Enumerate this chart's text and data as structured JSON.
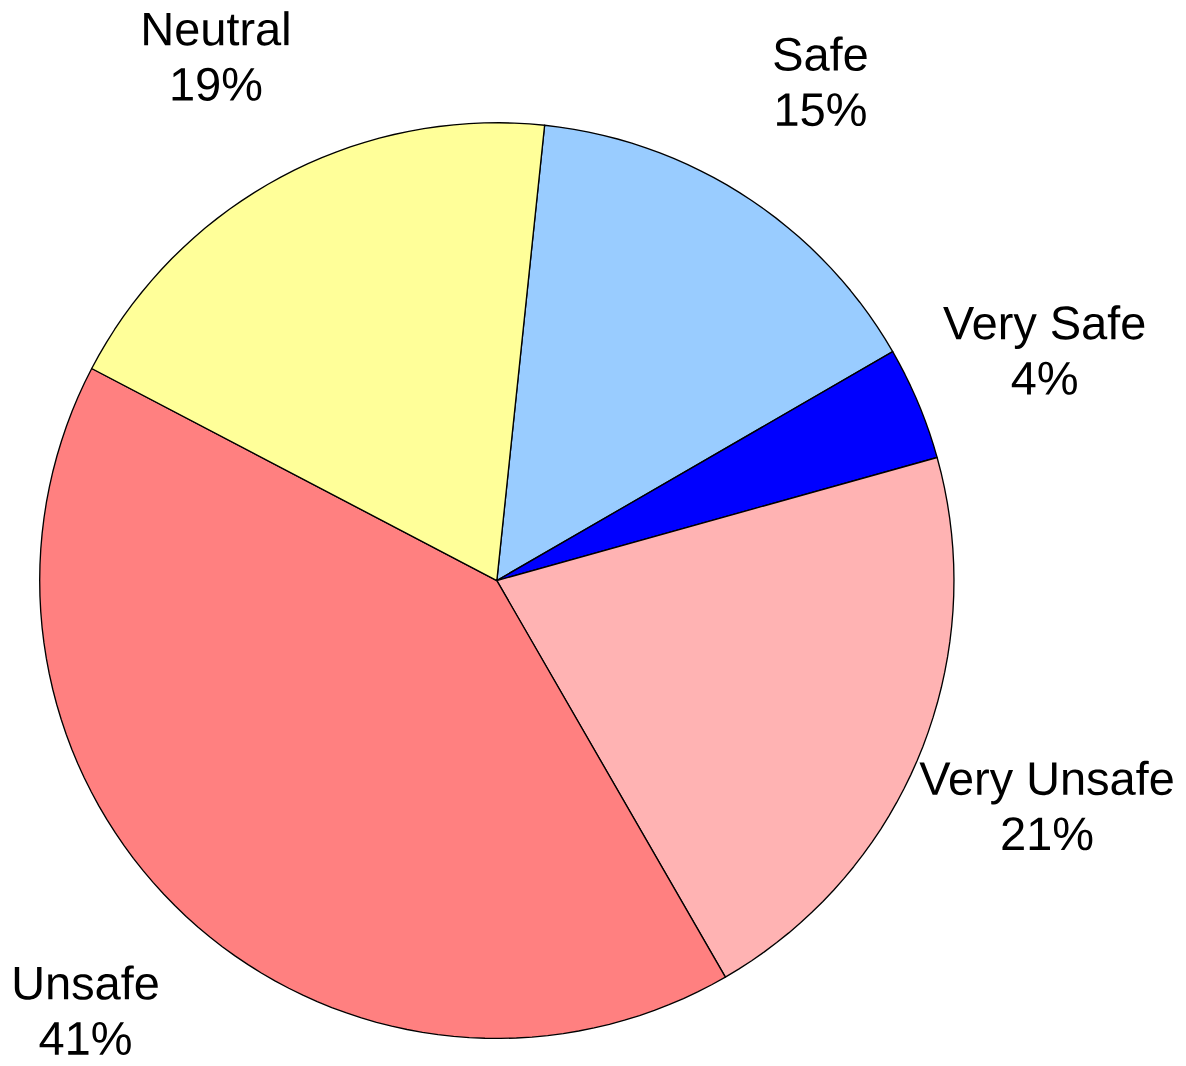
{
  "chart_data": {
    "type": "pie",
    "categories": [
      "Safe",
      "Very Safe",
      "Very Unsafe",
      "Unsafe",
      "Neutral"
    ],
    "values": [
      15,
      4,
      21,
      41,
      19
    ],
    "value_labels": [
      "15%",
      "4%",
      "21%",
      "41%",
      "19%"
    ],
    "colors": [
      "#99ccff",
      "#0000ff",
      "#ffb3b3",
      "#ff8080",
      "#ffff99"
    ]
  }
}
